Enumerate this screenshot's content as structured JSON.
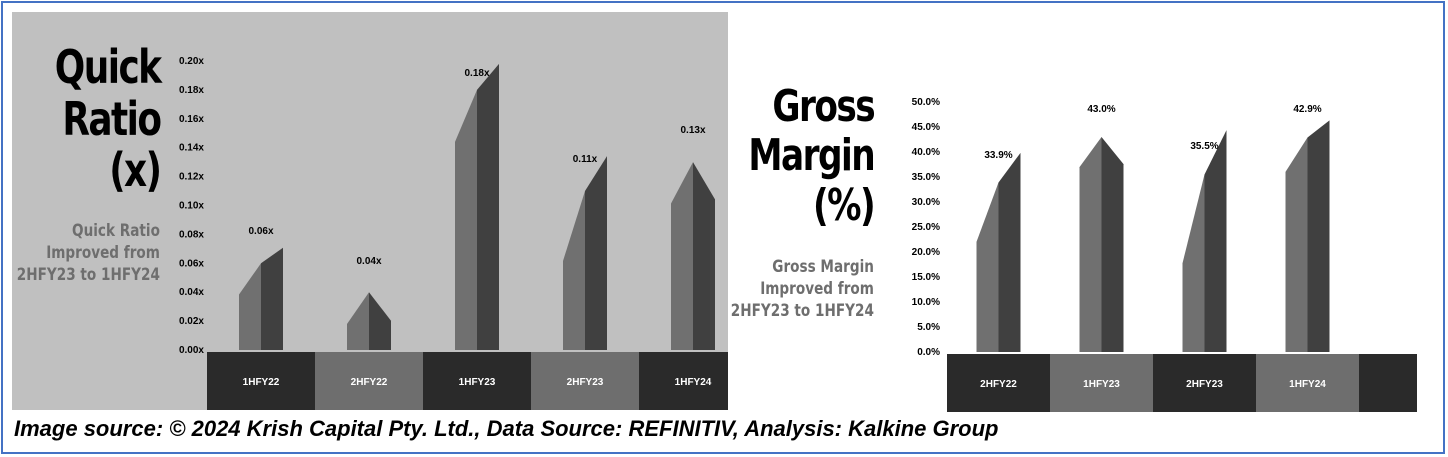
{
  "source": "Image source: © 2024 Krish Capital Pty. Ltd., Data Source: REFINITIV, Analysis: Kalkine Group",
  "colors": {
    "panel_bg_left": "#c0c0c0",
    "panel_bg_right": "#ffffff",
    "bar_light": "#707070",
    "bar_dark": "#404040",
    "axis_box_dark": "#2a2a2a",
    "axis_box_light": "#6e6e6e",
    "subtitle": "#6e6e6e",
    "frame": "#4472c4"
  },
  "chart_data": [
    {
      "type": "bar",
      "title_lines": [
        "Quick",
        "Ratio",
        "(x)"
      ],
      "subtitle_lines": [
        "Quick Ratio",
        "Improved from",
        "2HFY23 to 1HFY24"
      ],
      "categories": [
        "1HFY22",
        "2HFY22",
        "1HFY23",
        "2HFY23",
        "1HFY24"
      ],
      "values": [
        0.06,
        0.04,
        0.18,
        0.11,
        0.13
      ],
      "data_labels": [
        "0.06x",
        "0.04x",
        "0.18x",
        "0.11x",
        "0.13x"
      ],
      "yticks": [
        "0.00x",
        "0.02x",
        "0.04x",
        "0.06x",
        "0.08x",
        "0.10x",
        "0.12x",
        "0.14x",
        "0.16x",
        "0.18x",
        "0.20x"
      ],
      "ylim": [
        0,
        0.2
      ],
      "grid": false,
      "legend": "none"
    },
    {
      "type": "bar",
      "title_lines": [
        "Gross",
        "Margin",
        "(%)"
      ],
      "subtitle_lines": [
        "Gross Margin",
        "Improved from",
        "2HFY23 to 1HFY24"
      ],
      "categories": [
        "2HFY22",
        "1HFY23",
        "2HFY23",
        "1HFY24"
      ],
      "values": [
        33.9,
        43.0,
        35.5,
        42.9
      ],
      "data_labels": [
        "33.9%",
        "43.0%",
        "35.5%",
        "42.9%"
      ],
      "yticks": [
        "0.0%",
        "5.0%",
        "10.0%",
        "15.0%",
        "20.0%",
        "25.0%",
        "30.0%",
        "35.0%",
        "40.0%",
        "45.0%",
        "50.0%"
      ],
      "ylim": [
        0,
        50
      ],
      "grid": false,
      "legend": "none"
    }
  ]
}
